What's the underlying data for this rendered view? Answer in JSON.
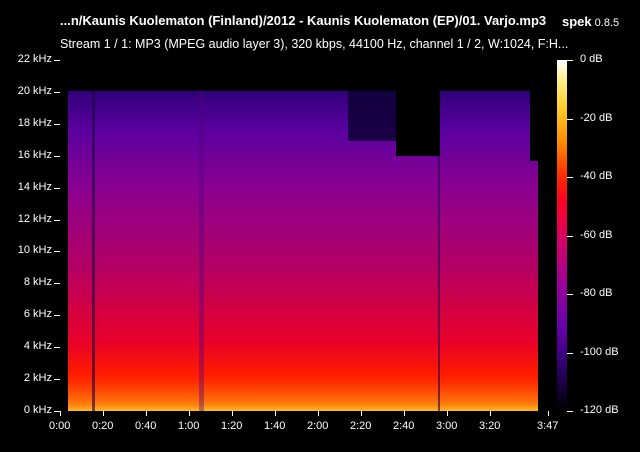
{
  "header": {
    "file_title": "...n/Kaunis Kuolematon (Finland)/2012 - Kaunis Kuolematon (EP)/01. Varjo.mp3",
    "app_name": "spek",
    "app_version": "0.8.5",
    "stream_info": "Stream 1 / 1: MP3 (MPEG audio layer 3), 320 kbps, 44100 Hz, channel 1 / 2, W:1024, F:H..."
  },
  "spectrogram": {
    "y_ticks": [
      "22 kHz",
      "20 kHz",
      "18 kHz",
      "16 kHz",
      "14 kHz",
      "12 kHz",
      "10 kHz",
      "8 kHz",
      "6 kHz",
      "4 kHz",
      "2 kHz",
      "0 kHz"
    ],
    "y_max_khz": 22,
    "x_ticks": [
      {
        "label": "0:00",
        "sec": 0
      },
      {
        "label": "0:20",
        "sec": 20
      },
      {
        "label": "0:40",
        "sec": 40
      },
      {
        "label": "1:00",
        "sec": 60
      },
      {
        "label": "1:20",
        "sec": 80
      },
      {
        "label": "1:40",
        "sec": 100
      },
      {
        "label": "2:00",
        "sec": 120
      },
      {
        "label": "2:20",
        "sec": 140
      },
      {
        "label": "2:40",
        "sec": 160
      },
      {
        "label": "3:00",
        "sec": 180
      },
      {
        "label": "3:20",
        "sec": 200
      },
      {
        "label": "3:47",
        "sec": 227
      }
    ],
    "duration_sec": 227,
    "colors": {
      "low": "#000000",
      "mid": "#990099",
      "high": "#ff2200",
      "top": "#ffffff"
    }
  },
  "colorbar": {
    "ticks": [
      "0 dB",
      "-20 dB",
      "-40 dB",
      "-60 dB",
      "-80 dB",
      "-100 dB",
      "-120 dB"
    ]
  }
}
